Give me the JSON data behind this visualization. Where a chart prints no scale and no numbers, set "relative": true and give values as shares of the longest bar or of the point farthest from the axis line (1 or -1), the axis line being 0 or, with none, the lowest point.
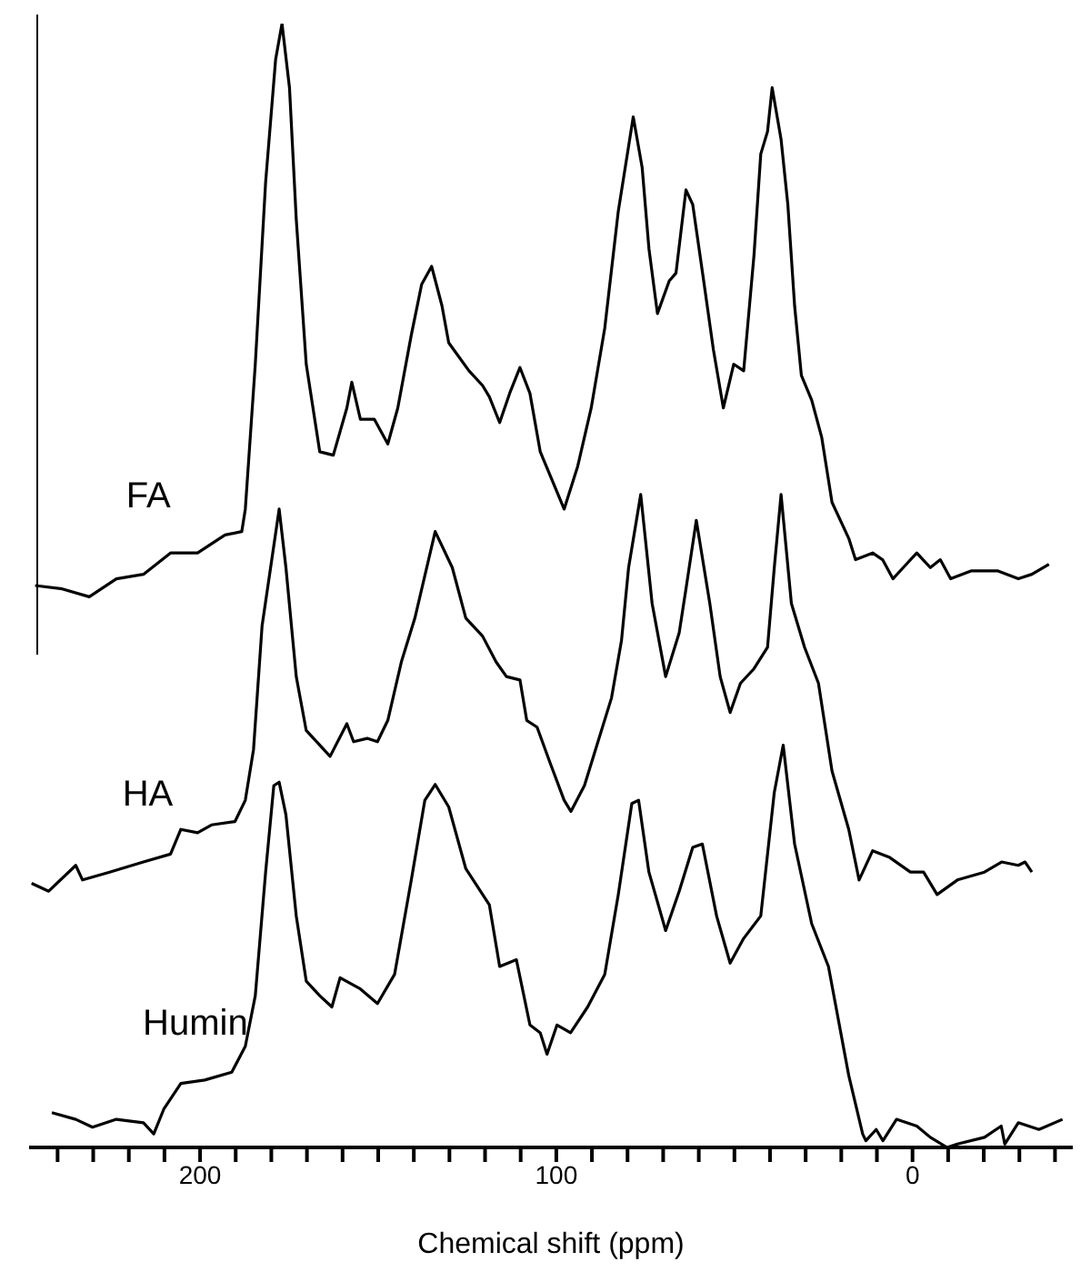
{
  "chart_data": {
    "type": "line",
    "relative": true,
    "xlabel": "Chemical shift (ppm)",
    "xlim": [
      248,
      -45
    ],
    "xticks": [
      {
        "value": 240,
        "label": null
      },
      {
        "value": 230,
        "label": null
      },
      {
        "value": 220,
        "label": null
      },
      {
        "value": 210,
        "label": null
      },
      200,
      {
        "value": 190,
        "label": null
      },
      {
        "value": 180,
        "label": null
      },
      {
        "value": 170,
        "label": null
      },
      {
        "value": 160,
        "label": null
      },
      {
        "value": 150,
        "label": null
      },
      {
        "value": 140,
        "label": null
      },
      {
        "value": 130,
        "label": null
      },
      {
        "value": 120,
        "label": null
      },
      {
        "value": 110,
        "label": null
      },
      100,
      {
        "value": 90,
        "label": null
      },
      {
        "value": 80,
        "label": null
      },
      {
        "value": 70,
        "label": null
      },
      {
        "value": 60,
        "label": null
      },
      {
        "value": 50,
        "label": null
      },
      {
        "value": 40,
        "label": null
      },
      {
        "value": 30,
        "label": null
      },
      {
        "value": 20,
        "label": null
      },
      {
        "value": 10,
        "label": null
      },
      0,
      {
        "value": -10,
        "label": null
      },
      {
        "value": -20,
        "label": null
      },
      {
        "value": -30,
        "label": null
      },
      {
        "value": -40,
        "label": null
      }
    ],
    "tick_labels": "x",
    "series": [
      {
        "name": "FA",
        "color": "#000000",
        "x": [
          246.3,
          238.7,
          231.1,
          223.5,
          215.9,
          208.3,
          200.7,
          193.0,
          188.3,
          187.3,
          184.5,
          181.6,
          178.8,
          177.0,
          174.9,
          173.0,
          170.2,
          166.4,
          162.6,
          158.8,
          157.4,
          155.0,
          151.1,
          147.3,
          144.5,
          140.7,
          137.8,
          135.0,
          132.1,
          130.2,
          124.5,
          120.7,
          118.8,
          115.9,
          113.1,
          110.2,
          107.4,
          104.5,
          101.6,
          97.8,
          94.0,
          90.2,
          86.4,
          82.6,
          79.7,
          78.4,
          75.9,
          74.0,
          71.6,
          68.3,
          66.4,
          63.6,
          61.7,
          58.8,
          55.9,
          53.1,
          50.2,
          47.4,
          44.5,
          42.6,
          40.7,
          39.4,
          36.9,
          35.0,
          33.1,
          31.2,
          28.3,
          25.5,
          22.6,
          17.9,
          16.0,
          11.2,
          8.4,
          5.5,
          2.6,
          -1.2,
          -5.0,
          -7.8,
          -10.7,
          -16.4,
          -24.0,
          -29.7,
          -33.5,
          -38.3
        ],
        "values": [
          0.5,
          0.497,
          0.49,
          0.506,
          0.51,
          0.529,
          0.529,
          0.545,
          0.548,
          0.568,
          0.697,
          0.859,
          0.968,
          1,
          0.943,
          0.826,
          0.697,
          0.619,
          0.616,
          0.658,
          0.681,
          0.648,
          0.648,
          0.626,
          0.658,
          0.723,
          0.768,
          0.784,
          0.749,
          0.716,
          0.691,
          0.678,
          0.668,
          0.645,
          0.671,
          0.694,
          0.671,
          0.619,
          0.597,
          0.568,
          0.606,
          0.658,
          0.729,
          0.833,
          0.891,
          0.917,
          0.872,
          0.8,
          0.742,
          0.771,
          0.778,
          0.852,
          0.839,
          0.775,
          0.71,
          0.658,
          0.697,
          0.691,
          0.794,
          0.884,
          0.904,
          0.943,
          0.897,
          0.839,
          0.749,
          0.687,
          0.665,
          0.632,
          0.574,
          0.542,
          0.523,
          0.529,
          0.523,
          0.506,
          0.516,
          0.529,
          0.516,
          0.523,
          0.506,
          0.513,
          0.513,
          0.506,
          0.51,
          0.519
        ]
      },
      {
        "name": "HA",
        "color": "#000000",
        "x": [
          247.3,
          242.5,
          234.9,
          233.0,
          225.4,
          215.9,
          208.3,
          205.4,
          200.7,
          196.8,
          190.2,
          187.3,
          185.0,
          182.6,
          177.8,
          175.9,
          173.0,
          170.2,
          163.5,
          158.8,
          156.9,
          153.1,
          150.2,
          147.3,
          143.5,
          139.7,
          134.0,
          129.2,
          125.4,
          120.7,
          116.9,
          114.0,
          110.2,
          108.3,
          105.4,
          101.6,
          97.8,
          95.9,
          92.1,
          88.3,
          84.5,
          81.7,
          79.7,
          76.3,
          73.1,
          69.3,
          65.5,
          63.6,
          60.7,
          56.9,
          54.0,
          51.2,
          48.3,
          44.5,
          40.7,
          38.8,
          36.9,
          34.0,
          30.3,
          26.4,
          22.6,
          17.9,
          15.0,
          11.2,
          6.4,
          0.6,
          -3.1,
          -6.9,
          -12.6,
          -20.2,
          -25.0,
          -29.7,
          -31.6,
          -33.5
        ],
        "values": [
          0.235,
          0.228,
          0.251,
          0.238,
          0.245,
          0.254,
          0.261,
          0.283,
          0.28,
          0.287,
          0.29,
          0.309,
          0.354,
          0.464,
          0.568,
          0.516,
          0.419,
          0.371,
          0.348,
          0.377,
          0.361,
          0.364,
          0.361,
          0.38,
          0.432,
          0.471,
          0.548,
          0.516,
          0.471,
          0.455,
          0.432,
          0.419,
          0.416,
          0.38,
          0.374,
          0.341,
          0.309,
          0.299,
          0.322,
          0.361,
          0.4,
          0.451,
          0.516,
          0.581,
          0.484,
          0.419,
          0.458,
          0.497,
          0.558,
          0.484,
          0.419,
          0.387,
          0.413,
          0.426,
          0.445,
          0.516,
          0.581,
          0.484,
          0.445,
          0.413,
          0.335,
          0.283,
          0.238,
          0.264,
          0.258,
          0.245,
          0.245,
          0.225,
          0.238,
          0.245,
          0.254,
          0.251,
          0.254,
          0.245
        ]
      },
      {
        "name": "Humin",
        "color": "#000000",
        "x": [
          241.6,
          234.9,
          230.2,
          223.5,
          215.9,
          213.0,
          210.2,
          205.4,
          198.7,
          191.1,
          187.3,
          184.5,
          181.6,
          179.3,
          177.8,
          175.9,
          173.0,
          170.2,
          166.4,
          163.0,
          160.7,
          155.0,
          150.2,
          145.4,
          140.7,
          136.9,
          134.0,
          130.2,
          125.4,
          118.8,
          115.9,
          111.2,
          107.4,
          104.5,
          102.6,
          99.8,
          96.0,
          91.2,
          86.4,
          82.6,
          78.8,
          76.9,
          74.0,
          69.3,
          65.5,
          61.7,
          59.0,
          55.0,
          51.2,
          47.4,
          42.6,
          38.8,
          36.3,
          33.1,
          28.3,
          23.6,
          17.9,
          14.0,
          13.1,
          10.2,
          8.3,
          4.5,
          -1.2,
          -5.0,
          -9.7,
          -12.6,
          -20.2,
          -24.9,
          -25.9,
          -29.7,
          -35.5,
          -42.1
        ],
        "values": [
          0.031,
          0.025,
          0.018,
          0.025,
          0.022,
          0.012,
          0.034,
          0.057,
          0.06,
          0.067,
          0.09,
          0.135,
          0.245,
          0.322,
          0.325,
          0.296,
          0.206,
          0.148,
          0.135,
          0.125,
          0.151,
          0.141,
          0.128,
          0.154,
          0.238,
          0.309,
          0.323,
          0.303,
          0.248,
          0.216,
          0.161,
          0.167,
          0.109,
          0.102,
          0.083,
          0.109,
          0.102,
          0.125,
          0.154,
          0.225,
          0.306,
          0.309,
          0.245,
          0.193,
          0.228,
          0.267,
          0.27,
          0.206,
          0.164,
          0.186,
          0.206,
          0.316,
          0.358,
          0.27,
          0.199,
          0.161,
          0.064,
          0.012,
          0.006,
          0.016,
          0.006,
          0.025,
          0.019,
          0.009,
          0.0,
          0.003,
          0.009,
          0.019,
          0.003,
          0.022,
          0.016,
          0.025
        ]
      }
    ]
  }
}
